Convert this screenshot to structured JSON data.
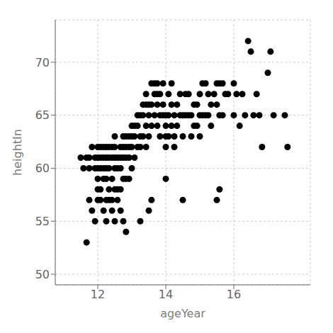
{
  "chart_data": {
    "type": "scatter",
    "x": [
      11.5,
      11.58,
      11.67,
      11.75,
      11.75,
      11.83,
      11.92,
      11.92,
      12.0,
      12.0,
      12.0,
      12.0,
      12.0,
      12.08,
      12.08,
      12.08,
      12.08,
      12.17,
      12.17,
      12.17,
      12.17,
      12.25,
      12.25,
      12.25,
      12.25,
      12.25,
      12.33,
      12.33,
      12.33,
      12.33,
      12.42,
      12.42,
      12.42,
      12.42,
      12.5,
      12.5,
      12.5,
      12.5,
      12.5,
      12.58,
      12.58,
      12.58,
      12.67,
      12.67,
      12.67,
      12.67,
      12.75,
      12.75,
      12.75,
      12.75,
      12.83,
      12.83,
      12.83,
      12.83,
      12.92,
      12.92,
      12.92,
      12.92,
      13.0,
      13.0,
      13.0,
      13.0,
      13.08,
      13.08,
      13.08,
      13.17,
      13.17,
      13.17,
      13.25,
      13.25,
      13.25,
      13.33,
      13.33,
      13.33,
      13.42,
      13.42,
      13.42,
      13.42,
      13.5,
      13.5,
      13.5,
      13.58,
      13.58,
      13.58,
      13.67,
      13.67,
      13.67,
      13.75,
      13.75,
      13.75,
      13.75,
      13.83,
      13.83,
      13.83,
      13.92,
      13.92,
      13.92,
      14.0,
      14.0,
      14.0,
      14.0,
      14.08,
      14.08,
      14.08,
      14.17,
      14.17,
      14.17,
      14.25,
      14.25,
      14.25,
      14.33,
      14.33,
      14.42,
      14.42,
      14.5,
      14.5,
      14.58,
      14.58,
      14.67,
      14.67,
      14.75,
      14.75,
      14.83,
      14.83,
      14.92,
      14.92,
      15.0,
      15.0,
      15.0,
      15.08,
      15.08,
      15.17,
      15.17,
      15.25,
      15.25,
      15.33,
      15.33,
      15.42,
      15.5,
      15.5,
      15.58,
      15.58,
      15.67,
      15.67,
      15.75,
      15.83,
      16.0,
      16.0,
      16.08,
      16.17,
      16.25,
      16.33,
      16.42,
      16.5,
      16.58,
      16.67,
      16.75,
      16.83,
      17.0,
      17.08,
      17.17,
      17.5,
      17.58,
      11.67,
      11.75,
      11.83,
      11.92,
      12.0,
      12.08,
      12.17,
      12.25,
      12.33,
      12.42,
      12.5,
      12.58,
      12.67,
      12.75,
      12.83,
      13.25,
      13.5,
      13.58,
      14.0,
      14.5,
      15.5,
      15.58
    ],
    "y": [
      61,
      60,
      61,
      60,
      61,
      62,
      61,
      60,
      62,
      61,
      60,
      59,
      57,
      62,
      61,
      60,
      58,
      62,
      61,
      60,
      59,
      62,
      61,
      60,
      59,
      57,
      62,
      61,
      60,
      58,
      62,
      61,
      59,
      57,
      63,
      62,
      61,
      60,
      58,
      61,
      60,
      58,
      62,
      61,
      60,
      58,
      63,
      62,
      61,
      59,
      63,
      62,
      61,
      59,
      63,
      62,
      61,
      59,
      64,
      63,
      62,
      60,
      64,
      63,
      61,
      65,
      64,
      62,
      65,
      63,
      62,
      66,
      65,
      63,
      67,
      66,
      64,
      62,
      66,
      65,
      63,
      68,
      66,
      64,
      68,
      67,
      65,
      68,
      67,
      66,
      64,
      67,
      65,
      63,
      68,
      66,
      65,
      65,
      64,
      63,
      62,
      67,
      65,
      63,
      68,
      66,
      64,
      65,
      63,
      62,
      66,
      64,
      67,
      65,
      65,
      63,
      67,
      65,
      67,
      65,
      65,
      63,
      66,
      64,
      66,
      64,
      67,
      65,
      63,
      68,
      65,
      68,
      65,
      67,
      65,
      66,
      64,
      67,
      68,
      66,
      68,
      65,
      68,
      65,
      67,
      67,
      68,
      65,
      67,
      64,
      67,
      65,
      72,
      71,
      65,
      67,
      65,
      62,
      69,
      71,
      65,
      65,
      62,
      53,
      57,
      56,
      55,
      58,
      57,
      56,
      55,
      57,
      56,
      55,
      57,
      56,
      55,
      54,
      55,
      56,
      57,
      59,
      57,
      57,
      58
    ],
    "xlim": [
      10.75,
      18.25
    ],
    "ylim": [
      49,
      74
    ],
    "xticks": [
      12,
      14,
      16
    ],
    "yticks": [
      50,
      55,
      60,
      65,
      70
    ],
    "xlabel": "ageYear",
    "ylabel": "heightIn",
    "color": "#000000",
    "grid": true
  }
}
